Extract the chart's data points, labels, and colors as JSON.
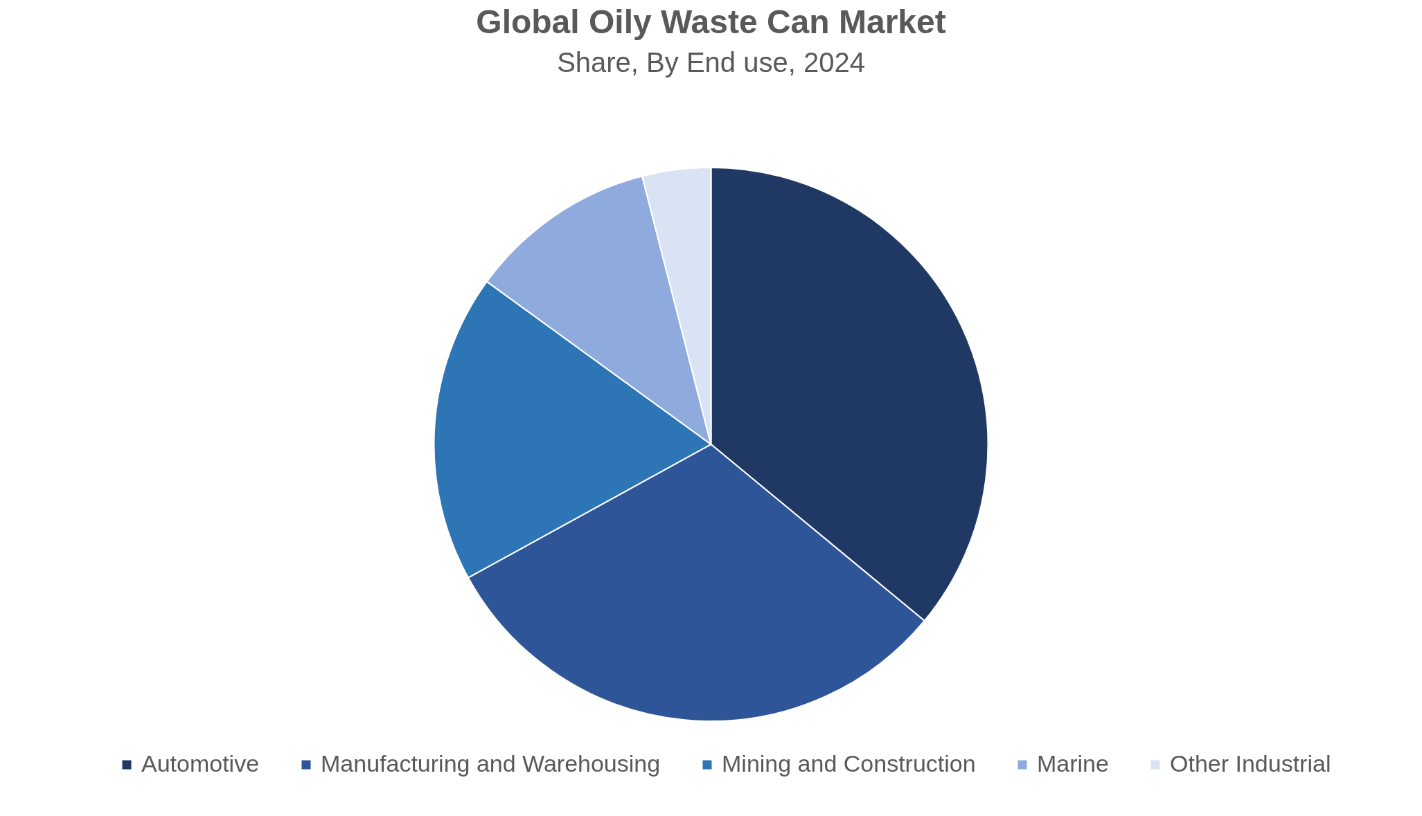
{
  "chart_data": {
    "type": "pie",
    "title": "Global Oily Waste Can Market",
    "subtitle": "Share, By End use, 2024",
    "categories": [
      "Automotive",
      "Manufacturing and Warehousing",
      "Mining and Construction",
      "Marine",
      "Other Industrial"
    ],
    "values": [
      36,
      31,
      18,
      11,
      4
    ],
    "colors": [
      "#1f3864",
      "#2e5597",
      "#2e75b6",
      "#8faadc",
      "#dae3f3"
    ],
    "legend": "bottom"
  }
}
